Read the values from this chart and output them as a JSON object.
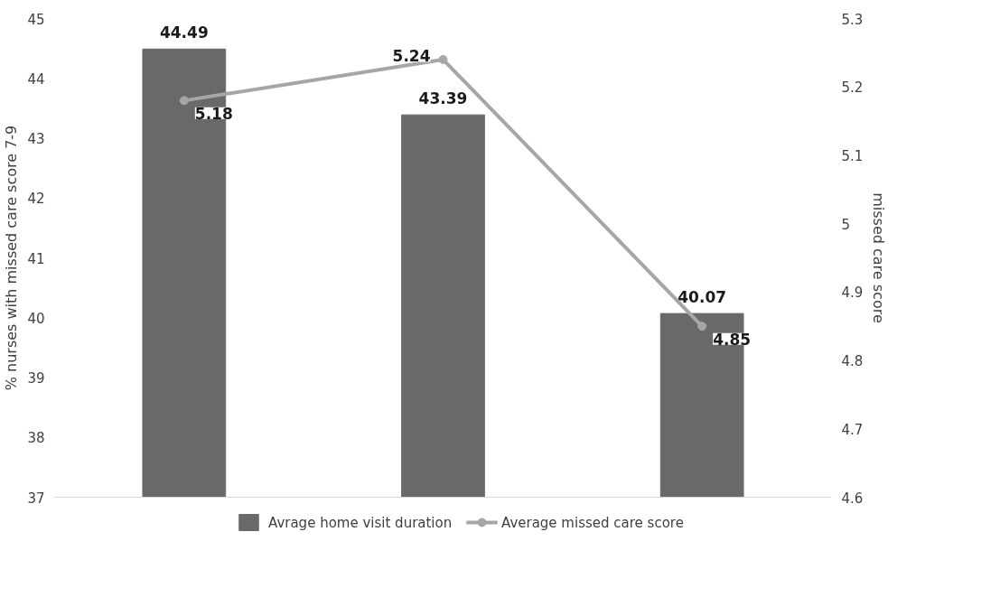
{
  "chart_data": {
    "type": "bar",
    "categories": [
      null,
      null,
      null
    ],
    "series": [
      {
        "name": "Avrage home visit duration",
        "color": "#696969",
        "values": [
          44.49,
          43.39,
          40.07
        ]
      },
      {
        "name": "Average missed care score",
        "type": "line",
        "axis": "y2",
        "color": "#a6a6a6",
        "marker": "circle",
        "values": [
          5.18,
          5.24,
          4.85
        ]
      }
    ],
    "ylabel": "% nurses with missed care score 7-9",
    "y2label": "missed care score",
    "ylim": [
      37,
      45
    ],
    "yticks": [
      37,
      38,
      39,
      40,
      41,
      42,
      43,
      44,
      45
    ],
    "y2lim": [
      4.6,
      5.3
    ],
    "y2ticks": [
      4.6,
      4.7,
      4.8,
      4.9,
      5,
      5.1,
      5.2,
      5.3
    ],
    "data_labels": true,
    "legend": "bottom",
    "grid": false
  }
}
